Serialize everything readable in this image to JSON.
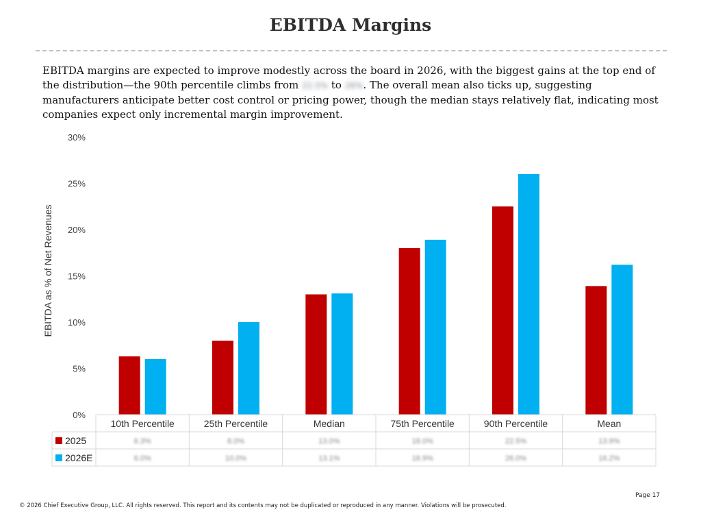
{
  "page": {
    "title": "EBITDA Margins",
    "intro": {
      "before": "EBITDA margins are expected to improve modestly across the board in 2026, with the biggest gains at the top end of the distribution—the 90th percentile climbs from ",
      "value_from": "22.5%",
      "middle": " to ",
      "value_to": "26%",
      "after": ". The overall mean also ticks up, suggesting manufacturers anticipate better cost control or pricing power, though the median stays relatively flat, indicating most companies expect only incremental margin improvement."
    },
    "footer": "© 2026 Chief Executive Group, LLC. All rights reserved. This report and its contents may not be duplicated or reproduced in any manner. Violations will be prosecuted.",
    "page_number": "Page 17"
  },
  "colors": {
    "series_2025": "#c00000",
    "series_2026": "#00b0f0",
    "axis_line": "#d9d9d9",
    "table_border": "#d9d9d9"
  },
  "chart_data": {
    "type": "bar",
    "ylabel": "EBITDA as % of Net Revenues",
    "ylim": [
      0,
      30
    ],
    "yticks": [
      "0%",
      "5%",
      "10%",
      "15%",
      "20%",
      "25%",
      "30%"
    ],
    "ytick_values": [
      0,
      5,
      10,
      15,
      20,
      25,
      30
    ],
    "grid": false,
    "categories": [
      "10th Percentile",
      "25th Percentile",
      "Median",
      "75th Percentile",
      "90th Percentile",
      "Mean"
    ],
    "series": [
      {
        "name": "2025",
        "values": [
          6.3,
          8.0,
          13.0,
          18.0,
          22.5,
          13.9
        ],
        "labels": [
          "6.3%",
          "8.0%",
          "13.0%",
          "18.0%",
          "22.5%",
          "13.9%"
        ]
      },
      {
        "name": "2026E",
        "values": [
          6.0,
          10.0,
          13.1,
          18.9,
          26.0,
          16.2
        ],
        "labels": [
          "6.0%",
          "10.0%",
          "13.1%",
          "18.9%",
          "26.0%",
          "16.2%"
        ]
      }
    ],
    "legend": "data-table"
  }
}
